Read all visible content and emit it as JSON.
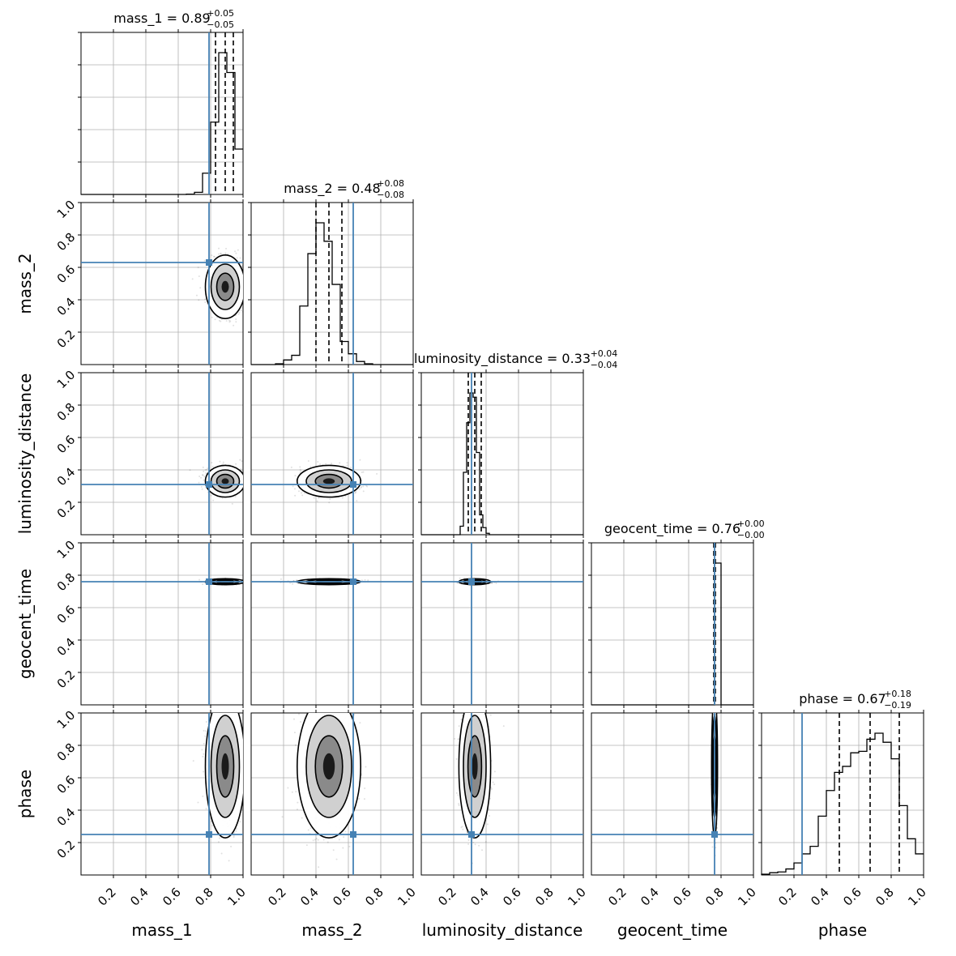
{
  "chart_data": {
    "type": "corner",
    "parameters": [
      "mass_1",
      "mass_2",
      "luminosity_distance",
      "geocent_time",
      "phase"
    ],
    "titles": [
      {
        "param": "mass_1",
        "prefix": "mass_1 = ",
        "median": "0.89",
        "plus": "+0.05",
        "minus": "−0.05"
      },
      {
        "param": "mass_2",
        "prefix": "mass_2 = ",
        "median": "0.48",
        "plus": "+0.08",
        "minus": "−0.08"
      },
      {
        "param": "luminosity_distance",
        "prefix": "luminosity_distance = ",
        "median": "0.33",
        "plus": "+0.04",
        "minus": "−0.04"
      },
      {
        "param": "geocent_time",
        "prefix": "geocent_time = ",
        "median": "0.76",
        "plus": "+0.00",
        "minus": "−0.00"
      },
      {
        "param": "phase",
        "prefix": "phase = ",
        "median": "0.67",
        "plus": "+0.18",
        "minus": "−0.19"
      }
    ],
    "axis_range": [
      0,
      1
    ],
    "tick_labels": [
      "0.2",
      "0.4",
      "0.6",
      "0.8",
      "1.0"
    ],
    "truths": [
      0.79,
      0.63,
      0.31,
      0.76,
      0.25
    ],
    "medians": [
      0.89,
      0.48,
      0.33,
      0.76,
      0.67
    ],
    "quantiles": [
      [
        0.83,
        0.89,
        0.94
      ],
      [
        0.4,
        0.48,
        0.56
      ],
      [
        0.29,
        0.33,
        0.37
      ],
      [
        0.755,
        0.76,
        0.765
      ],
      [
        0.48,
        0.67,
        0.85
      ]
    ],
    "posterior_sd": [
      0.05,
      0.08,
      0.04,
      0.006,
      0.18
    ],
    "histograms": {
      "mass_1": {
        "edges_start": 0.0,
        "bin_width": 0.05,
        "counts": [
          0,
          0,
          0,
          0,
          0,
          0,
          0,
          0,
          0,
          0,
          0,
          0,
          0,
          0.002,
          0.015,
          0.15,
          0.51,
          1.0,
          0.86,
          0.32
        ]
      },
      "mass_2": {
        "edges_start": 0.0,
        "bin_width": 0.05,
        "counts": [
          0,
          0,
          0,
          0.005,
          0.03,
          0.06,
          0.38,
          0.72,
          0.92,
          0.8,
          0.52,
          0.15,
          0.07,
          0.02,
          0.005,
          0,
          0,
          0,
          0,
          0
        ]
      },
      "luminosity_distance": {
        "edges_start": 0.0,
        "bin_width": 0.02,
        "counts": [
          0,
          0,
          0,
          0,
          0,
          0,
          0,
          0,
          0,
          0,
          0,
          0,
          0.06,
          0.44,
          0.79,
          1.0,
          0.97,
          0.58,
          0.14,
          0.05,
          0.01,
          0,
          0,
          0,
          0,
          0,
          0,
          0,
          0,
          0,
          0,
          0,
          0,
          0,
          0,
          0,
          0,
          0,
          0,
          0,
          0,
          0,
          0,
          0,
          0,
          0,
          0,
          0,
          0,
          0
        ]
      },
      "geocent_time": {
        "edges_start": 0.0,
        "bin_width": 0.04,
        "counts": [
          0,
          0,
          0,
          0,
          0,
          0,
          0,
          0,
          0,
          0,
          0,
          0,
          0,
          0,
          0,
          0,
          0,
          0,
          0,
          1.0,
          0,
          0,
          0,
          0,
          0
        ]
      },
      "phase": {
        "edges_start": 0.0,
        "bin_width": 0.05,
        "counts": [
          0.005,
          0.015,
          0.02,
          0.04,
          0.08,
          0.14,
          0.19,
          0.39,
          0.56,
          0.68,
          0.72,
          0.81,
          0.82,
          0.9,
          0.94,
          0.88,
          0.77,
          0.46,
          0.24,
          0.14
        ]
      }
    }
  },
  "colors": {
    "truth": "#4682b4",
    "hist": "#000000",
    "density": "#000000",
    "grid": "#b0b0b0"
  }
}
